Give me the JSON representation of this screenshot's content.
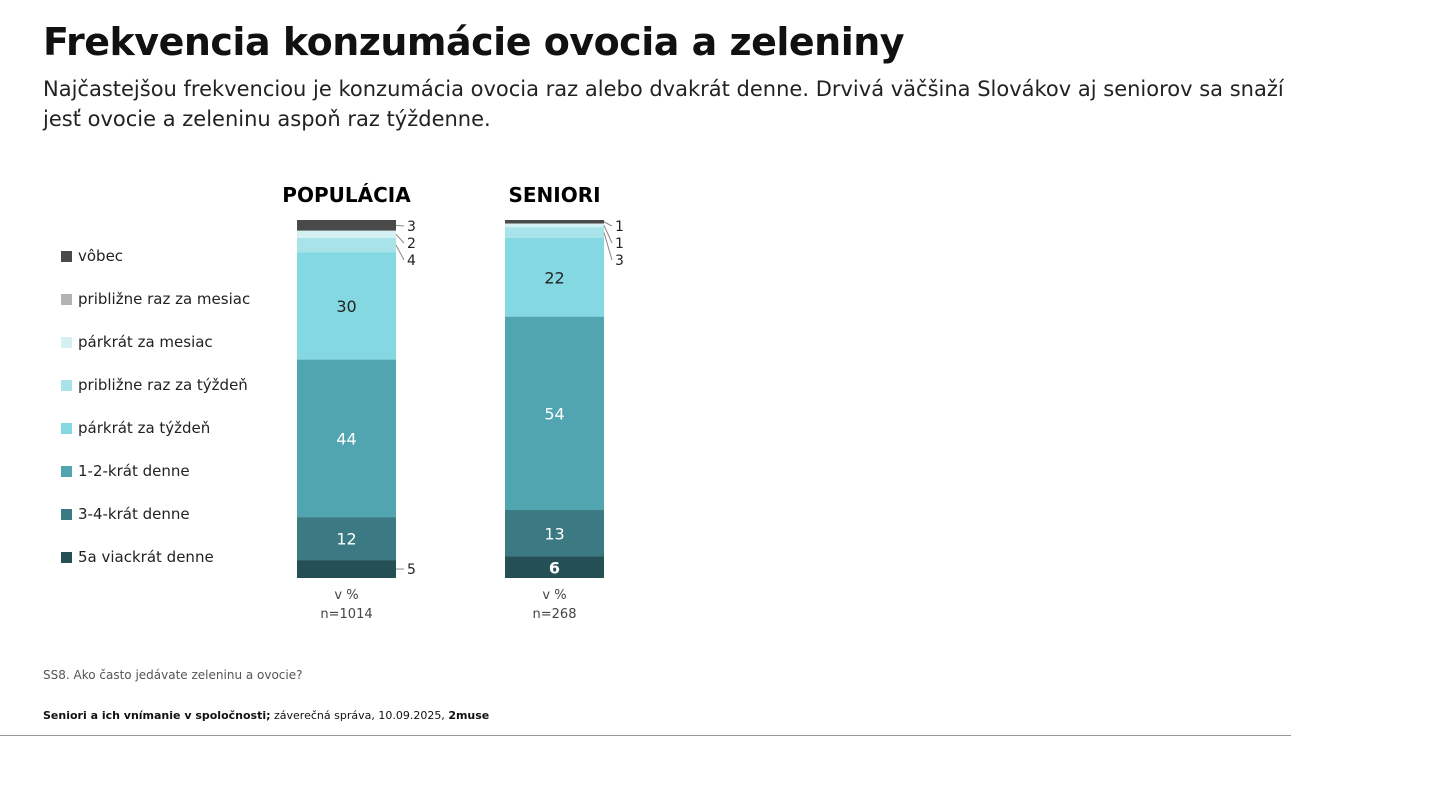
{
  "title": "Frekvencia konzumácie ovocia a zeleniny",
  "subtitle": "Najčastejšou frekvenciou je konzumácia ovocia raz alebo dvakrát denne. Drvivá väčšina Slovákov aj seniorov sa snaží jesť ovocie a zeleninu aspoň raz týždenne.",
  "question": "SS8. Ako často jedávate zeleninu a ovocie?",
  "source": {
    "bold": "Seniori a ich vnímanie v spoločnosti;",
    "normal": " záverečná správa, 10.09.2025, ",
    "brand": "2muse"
  },
  "chart_data": {
    "type": "bar",
    "stacked": true,
    "unit": "v %",
    "legend_position": "left",
    "categories": [
      "POPULÁCIA",
      "SENIORI"
    ],
    "sample_sizes": [
      "n=1014",
      "n=268"
    ],
    "series": [
      {
        "name": "vôbec",
        "color": "#4a4a4a",
        "values": [
          3,
          1
        ]
      },
      {
        "name": "približne raz za mesiac",
        "color": "#b3b3b3",
        "values": [
          0,
          0
        ]
      },
      {
        "name": "párkrát za mesiac",
        "color": "#d4f0f3",
        "values": [
          2,
          1
        ]
      },
      {
        "name": "približne raz za týždeň",
        "color": "#a9e3ea",
        "values": [
          4,
          3
        ]
      },
      {
        "name": "párkrát za týždeň",
        "color": "#84d8e2",
        "values": [
          30,
          22
        ]
      },
      {
        "name": "1-2-krát denne",
        "color": "#50a5b0",
        "values": [
          44,
          54
        ]
      },
      {
        "name": "3-4-krát denne",
        "color": "#3b7a82",
        "values": [
          12,
          13
        ]
      },
      {
        "name": "5a viackrát denne",
        "color": "#245055",
        "values": [
          5,
          6
        ]
      }
    ]
  }
}
